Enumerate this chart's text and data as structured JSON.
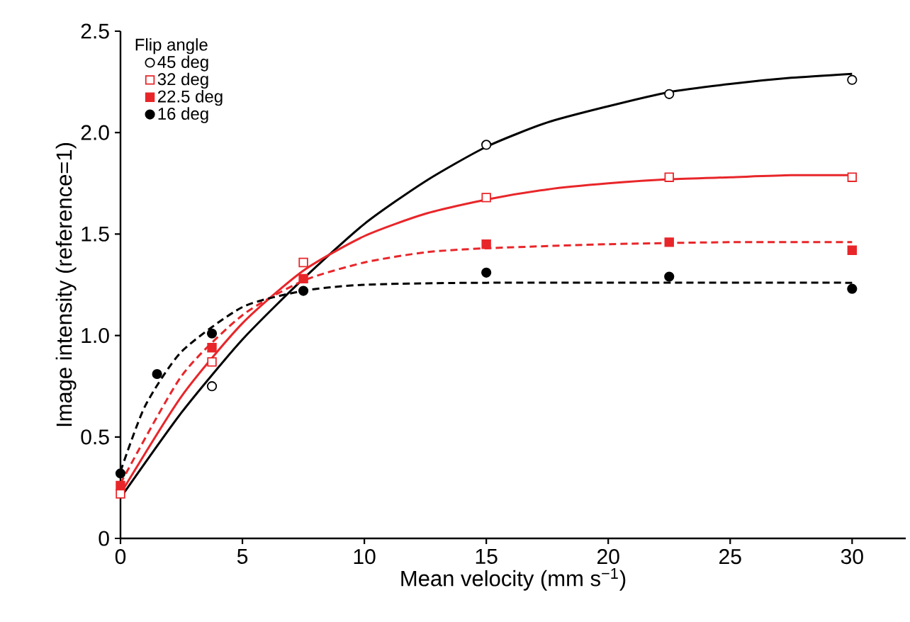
{
  "chart_data": {
    "type": "scatter",
    "xlabel": "Mean velocity (mm s$^{−1}$)",
    "ylabel": "Image intensity (reference=1)",
    "legend_title": "Flip angle",
    "xlim": [
      0,
      32.2
    ],
    "ylim": [
      0,
      2.5
    ],
    "xticks": [
      0,
      5,
      10,
      15,
      20,
      25,
      30
    ],
    "yticks": [
      0,
      0.5,
      {
        "value": 1,
        "label": "1.0"
      },
      1.5,
      {
        "value": 2,
        "label": "2.0"
      },
      2.5
    ],
    "legend": "top left",
    "grid": false,
    "series": [
      {
        "name": "45 deg",
        "color": "#000000",
        "marker": "circle-open",
        "x": [
          3.75,
          15,
          22.5,
          30
        ],
        "values": [
          0.75,
          1.94,
          2.19,
          2.26
        ]
      },
      {
        "name": "32 deg",
        "color": "#e8262a",
        "marker": "square-open",
        "x": [
          0,
          3.75,
          7.5,
          15,
          22.5,
          30
        ],
        "values": [
          0.22,
          0.87,
          1.36,
          1.68,
          1.78,
          1.78
        ]
      },
      {
        "name": "22.5 deg",
        "color": "#e8262a",
        "marker": "square",
        "x": [
          0,
          3.75,
          7.5,
          15,
          22.5,
          30
        ],
        "values": [
          0.26,
          0.94,
          1.28,
          1.45,
          1.46,
          1.42
        ]
      },
      {
        "name": "16 deg",
        "color": "#000000",
        "marker": "circle",
        "x": [
          0,
          1.5,
          3.75,
          7.5,
          15,
          22.5,
          30
        ],
        "values": [
          0.32,
          0.81,
          1.01,
          1.22,
          1.31,
          1.29,
          1.23
        ]
      },
      {
        "type": "line",
        "color": "#000000",
        "line_style": "solid",
        "x": [
          0,
          2.5,
          5,
          7.5,
          10,
          12.5,
          15,
          17.5,
          20,
          22.5,
          25,
          27.5,
          30
        ],
        "values": [
          0.2,
          0.62,
          0.98,
          1.28,
          1.55,
          1.76,
          1.93,
          2.05,
          2.13,
          2.2,
          2.24,
          2.27,
          2.29
        ]
      },
      {
        "type": "line",
        "color": "#e8262a",
        "line_style": "solid",
        "x": [
          0,
          2.5,
          5,
          7.5,
          10,
          12.5,
          15,
          17.5,
          20,
          22.5,
          25,
          27.5,
          30
        ],
        "values": [
          0.22,
          0.7,
          1.06,
          1.32,
          1.49,
          1.6,
          1.67,
          1.72,
          1.75,
          1.77,
          1.78,
          1.79,
          1.79
        ]
      },
      {
        "type": "line",
        "color": "#e8262a",
        "line_style": "dashed",
        "x": [
          0,
          2.5,
          5,
          7.5,
          10,
          12.5,
          15,
          20,
          25,
          30
        ],
        "values": [
          0.27,
          0.8,
          1.1,
          1.27,
          1.36,
          1.41,
          1.43,
          1.45,
          1.46,
          1.46
        ]
      },
      {
        "type": "line",
        "color": "#000000",
        "line_style": "dashed",
        "x": [
          0,
          1,
          2.5,
          5,
          7.5,
          10,
          15,
          30
        ],
        "values": [
          0.33,
          0.65,
          0.92,
          1.14,
          1.22,
          1.25,
          1.26,
          1.26
        ]
      }
    ]
  }
}
